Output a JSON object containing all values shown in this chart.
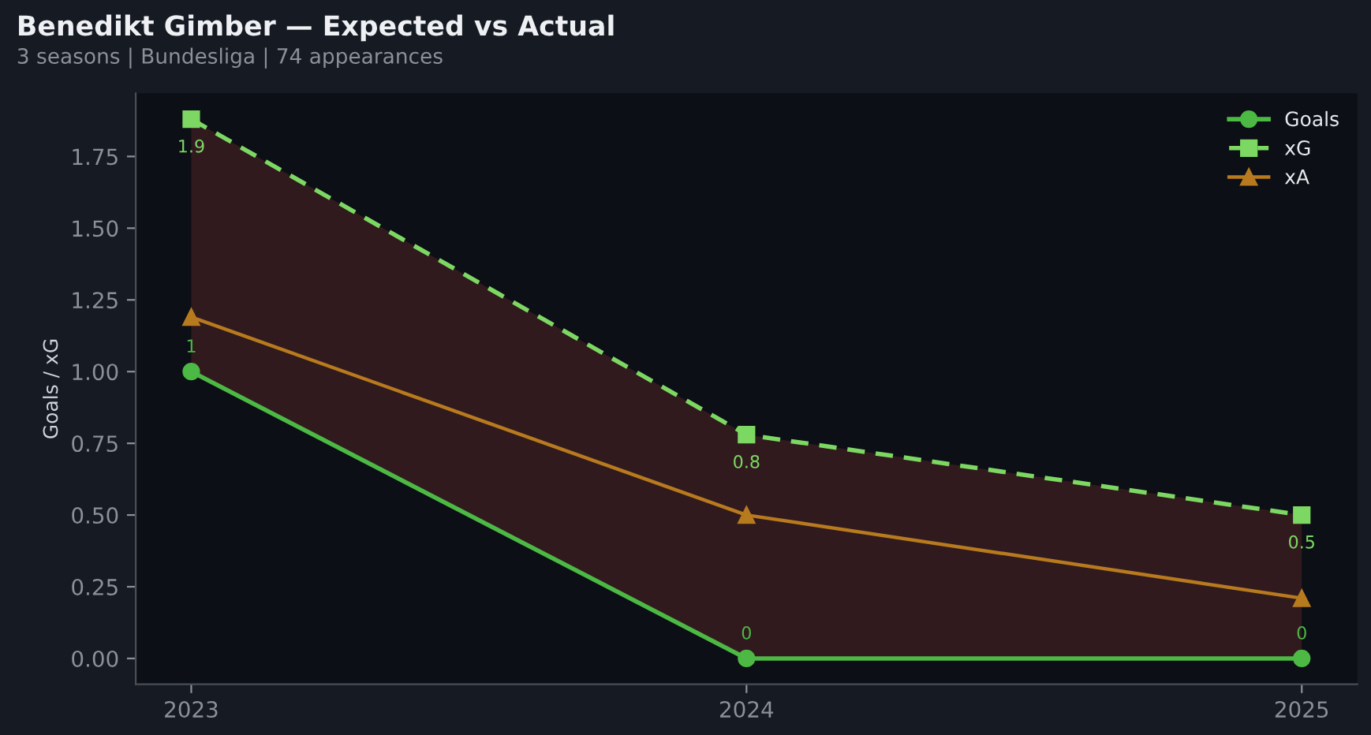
{
  "chart_data": {
    "type": "line",
    "title": "Benedikt Gimber — Expected vs Actual",
    "subtitle": "3 seasons | Bundesliga | 74 appearances",
    "ylabel": "Goals / xG",
    "x": [
      2023,
      2024,
      2025
    ],
    "xlim": [
      2022.9,
      2025.1
    ],
    "xticks": [
      2023,
      2024,
      2025
    ],
    "ylim": [
      -0.09,
      1.97
    ],
    "yticks": [
      {
        "value": 0,
        "label": "0.00"
      },
      {
        "value": 0.25,
        "label": "0.25"
      },
      {
        "value": 0.5,
        "label": "0.50"
      },
      {
        "value": 0.75,
        "label": "0.75"
      },
      {
        "value": 1,
        "label": "1.00"
      },
      {
        "value": 1.25,
        "label": "1.25"
      },
      {
        "value": 1.5,
        "label": "1.50"
      },
      {
        "value": 1.75,
        "label": "1.75"
      }
    ],
    "grid": false,
    "legend": "top right",
    "series": [
      {
        "name": "Goals",
        "color": "#4cb944",
        "values": [
          1,
          0,
          0
        ],
        "marker": "circle",
        "line_style": "solid",
        "value_labels": [
          "1",
          "0",
          "0"
        ]
      },
      {
        "name": "xG",
        "color": "#7dd863",
        "values": [
          1.88,
          0.78,
          0.5
        ],
        "marker": "square",
        "line_style": "dashed",
        "value_labels": [
          "1.9",
          "0.8",
          "0.5"
        ],
        "lower": [
          1,
          0,
          0
        ],
        "upper": [
          1.88,
          0.78,
          0.5
        ]
      },
      {
        "name": "xA",
        "color": "#b87a1e",
        "values": [
          1.19,
          0.5,
          0.21
        ],
        "marker": "triangle",
        "line_style": "solid"
      }
    ]
  }
}
